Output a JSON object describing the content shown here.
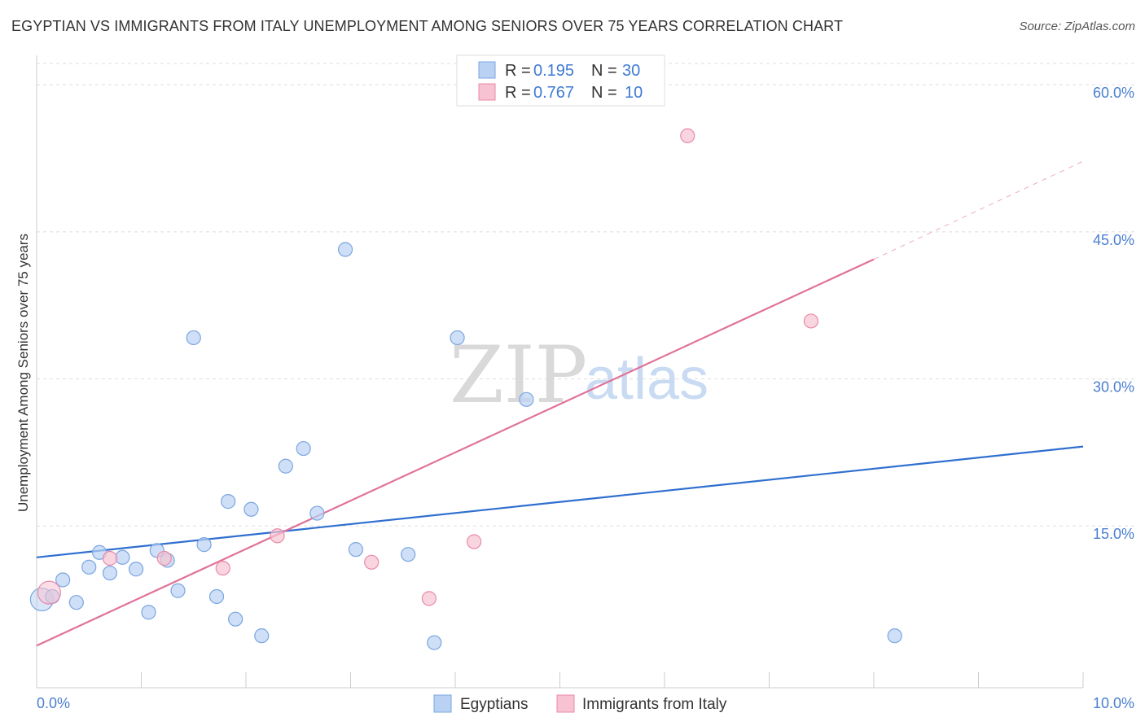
{
  "header": {
    "title": "EGYPTIAN VS IMMIGRANTS FROM ITALY UNEMPLOYMENT AMONG SENIORS OVER 75 YEARS CORRELATION CHART",
    "source": "Source: ZipAtlas.com"
  },
  "watermark": {
    "zip": "ZIP",
    "atlas": "atlas"
  },
  "legend": {
    "r_label": "R =",
    "n_label": "N =",
    "egyptians": {
      "r": "0.195",
      "n": "30"
    },
    "italy": {
      "r": "0.767",
      "n": "10"
    }
  },
  "colors": {
    "egyptians_fill": "#b9d2f3",
    "egyptians_stroke": "#7aa6e0",
    "egyptians_line": "#2f6fd0",
    "italy_fill": "#f7c3d2",
    "italy_stroke": "#e98aa8",
    "italy_line": "#e0729a",
    "grid": "#dddddd",
    "axis": "#cccccc"
  },
  "chart_data": {
    "type": "scatter",
    "title": "EGYPTIAN VS IMMIGRANTS FROM ITALY UNEMPLOYMENT AMONG SENIORS OVER 75 YEARS CORRELATION CHART",
    "xlabel": "",
    "ylabel": "Unemployment Among Seniors over 75 years",
    "xlim": [
      0,
      10
    ],
    "ylim": [
      -1.5,
      63
    ],
    "x_tick_labels": [
      "0.0%",
      "10.0%"
    ],
    "y_tick_labels": [
      "15.0%",
      "30.0%",
      "45.0%",
      "60.0%"
    ],
    "y_ticks": [
      15,
      30,
      45,
      60
    ],
    "grid": true,
    "legend_position": "bottom-center",
    "series": [
      {
        "name": "Egyptians",
        "r": 0.195,
        "n": 30,
        "points": [
          {
            "x": 0.05,
            "y": 7.5,
            "big": true
          },
          {
            "x": 0.15,
            "y": 7.8
          },
          {
            "x": 0.25,
            "y": 9.5
          },
          {
            "x": 0.38,
            "y": 7.2
          },
          {
            "x": 0.5,
            "y": 10.8
          },
          {
            "x": 0.6,
            "y": 12.3
          },
          {
            "x": 0.7,
            "y": 10.2
          },
          {
            "x": 0.82,
            "y": 11.8
          },
          {
            "x": 0.95,
            "y": 10.6
          },
          {
            "x": 1.07,
            "y": 6.2
          },
          {
            "x": 1.15,
            "y": 12.5
          },
          {
            "x": 1.25,
            "y": 11.5
          },
          {
            "x": 1.35,
            "y": 8.4
          },
          {
            "x": 1.5,
            "y": 34.2
          },
          {
            "x": 1.6,
            "y": 13.1
          },
          {
            "x": 1.72,
            "y": 7.8
          },
          {
            "x": 1.83,
            "y": 17.5
          },
          {
            "x": 1.9,
            "y": 5.5
          },
          {
            "x": 2.05,
            "y": 16.7
          },
          {
            "x": 2.15,
            "y": 3.8
          },
          {
            "x": 2.38,
            "y": 21.1
          },
          {
            "x": 2.55,
            "y": 22.9
          },
          {
            "x": 2.68,
            "y": 16.3
          },
          {
            "x": 2.95,
            "y": 43.2
          },
          {
            "x": 3.05,
            "y": 12.6
          },
          {
            "x": 3.55,
            "y": 12.1
          },
          {
            "x": 3.8,
            "y": 3.1
          },
          {
            "x": 4.02,
            "y": 34.2
          },
          {
            "x": 4.68,
            "y": 27.9
          },
          {
            "x": 8.2,
            "y": 3.8
          }
        ],
        "trend": {
          "x": [
            0,
            10
          ],
          "y": [
            11.8,
            23.1
          ]
        }
      },
      {
        "name": "Immigrants from Italy",
        "r": 0.767,
        "n": 10,
        "points": [
          {
            "x": 0.12,
            "y": 8.2,
            "big": true
          },
          {
            "x": 0.7,
            "y": 11.7
          },
          {
            "x": 1.22,
            "y": 11.7
          },
          {
            "x": 1.78,
            "y": 10.7
          },
          {
            "x": 2.3,
            "y": 14.0
          },
          {
            "x": 3.2,
            "y": 11.3
          },
          {
            "x": 3.75,
            "y": 7.6
          },
          {
            "x": 4.18,
            "y": 13.4
          },
          {
            "x": 6.22,
            "y": 54.8
          },
          {
            "x": 7.4,
            "y": 35.9
          }
        ],
        "trend": {
          "x": [
            0,
            8.0
          ],
          "y": [
            2.8,
            42.2
          ]
        },
        "trend_dashed": {
          "x": [
            8.0,
            10
          ],
          "y": [
            42.2,
            52.2
          ]
        }
      }
    ]
  },
  "bottom_legend": [
    {
      "label": "Egyptians"
    },
    {
      "label": "Immigrants from Italy"
    }
  ]
}
